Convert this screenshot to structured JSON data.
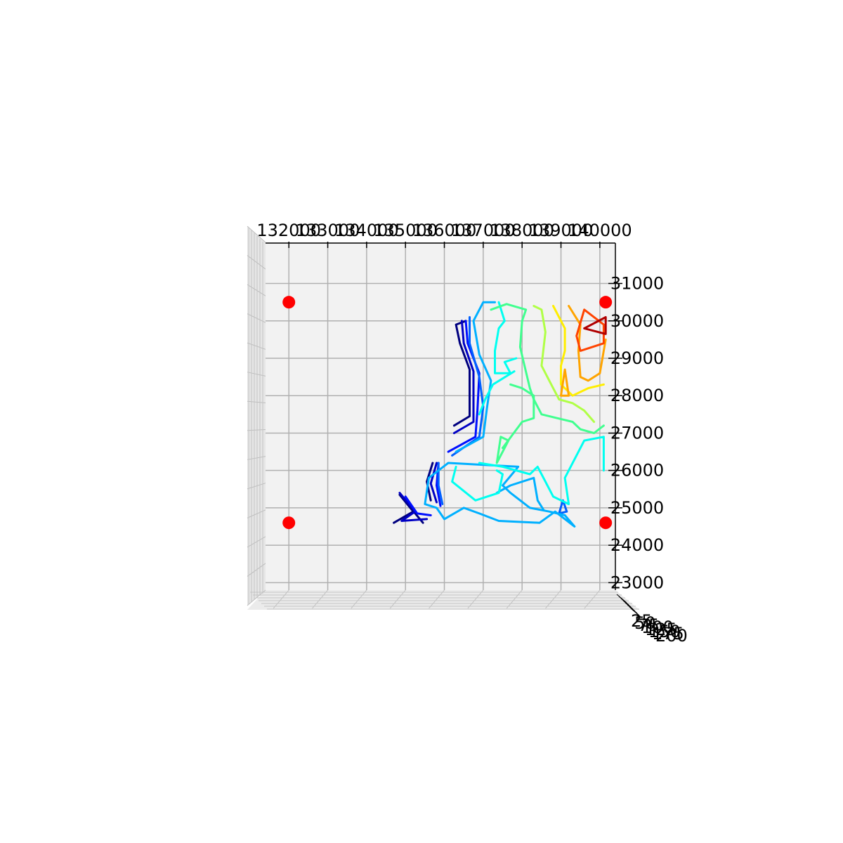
{
  "chart_data": {
    "type": "contour",
    "title": "",
    "xlabel": "",
    "ylabel": "",
    "grid": true,
    "xlim": [
      131400,
      140400
    ],
    "ylim": [
      22800,
      32100
    ],
    "x_ticks": [
      132000,
      133000,
      134000,
      135000,
      136000,
      137000,
      138000,
      139000,
      140000
    ],
    "y_ticks": [
      23000,
      24000,
      25000,
      26000,
      27000,
      28000,
      29000,
      30000,
      31000
    ],
    "x_tick_labels": [
      "132000",
      "133000",
      "134000",
      "135000",
      "136000",
      "137000",
      "138000",
      "139000",
      "140000"
    ],
    "y_tick_labels": [
      "23000",
      "24000",
      "25000",
      "26000",
      "27000",
      "28000",
      "29000",
      "30000",
      "31000"
    ],
    "z_tick_labels": [
      "25",
      "50",
      "75",
      "100",
      "125",
      "150",
      "175",
      "200"
    ],
    "colormap": "jet",
    "colors": {
      "pane": "#f2f2f2",
      "grid": "#b0b0b0",
      "marker": "#ff0000"
    },
    "markers": [
      {
        "x": 132000,
        "y": 30500
      },
      {
        "x": 140150,
        "y": 30500
      },
      {
        "x": 132000,
        "y": 24600
      },
      {
        "x": 140150,
        "y": 24600
      }
    ],
    "contours": [
      {
        "level": 0.0,
        "color": "#00007f",
        "paths": [
          [
            [
              134700,
              24600
            ],
            [
              135200,
              24900
            ],
            [
              134850,
              25350
            ],
            [
              135450,
              24600
            ]
          ],
          [
            [
              136250,
              27200
            ],
            [
              136650,
              27450
            ],
            [
              136650,
              28700
            ],
            [
              136400,
              29400
            ],
            [
              136300,
              29900
            ],
            [
              136550,
              30000
            ]
          ],
          [
            [
              135700,
              26200
            ],
            [
              135550,
              25700
            ],
            [
              135650,
              25200
            ]
          ]
        ]
      },
      {
        "level": 0.1,
        "color": "#0000c4",
        "paths": [
          [
            [
              134850,
              25400
            ],
            [
              135250,
              24900
            ],
            [
              134900,
              24650
            ],
            [
              135550,
              24700
            ]
          ],
          [
            [
              136250,
              27000
            ],
            [
              136750,
              27300
            ],
            [
              136750,
              28650
            ],
            [
              136500,
              29400
            ],
            [
              136450,
              30000
            ]
          ],
          [
            [
              135800,
              26200
            ],
            [
              135650,
              25650
            ],
            [
              135800,
              25150
            ]
          ]
        ]
      },
      {
        "level": 0.2,
        "color": "#0010ff",
        "paths": [
          [
            [
              135000,
              25300
            ],
            [
              135300,
              24850
            ],
            [
              135650,
              24800
            ]
          ],
          [
            [
              136100,
              26500
            ],
            [
              136800,
              26900
            ],
            [
              136850,
              27600
            ],
            [
              136900,
              28600
            ],
            [
              136600,
              29400
            ],
            [
              136550,
              30000
            ]
          ],
          [
            [
              135850,
              26200
            ],
            [
              135800,
              25600
            ],
            [
              135900,
              25050
            ]
          ]
        ]
      },
      {
        "level": 0.3,
        "color": "#0060ff",
        "paths": [
          [
            [
              136200,
              26400
            ],
            [
              136900,
              26900
            ],
            [
              137000,
              27700
            ],
            [
              136900,
              28500
            ],
            [
              136650,
              29400
            ],
            [
              136650,
              30100
            ]
          ],
          [
            [
              135850,
              26200
            ],
            [
              135850,
              25600
            ],
            [
              135950,
              25100
            ]
          ],
          [
            [
              139050,
              25200
            ],
            [
              138950,
              24850
            ],
            [
              139150,
              24900
            ],
            [
              139050,
              25200
            ]
          ]
        ]
      },
      {
        "level": 0.4,
        "color": "#00b0ff",
        "paths": [
          [
            [
              135500,
              25100
            ],
            [
              135600,
              25800
            ],
            [
              136100,
              26200
            ],
            [
              137900,
              26100
            ],
            [
              137500,
              25600
            ],
            [
              137700,
              25400
            ],
            [
              138200,
              25000
            ],
            [
              138700,
              24900
            ],
            [
              139100,
              24800
            ],
            [
              139350,
              24500
            ],
            [
              138850,
              24900
            ],
            [
              138450,
              24600
            ],
            [
              137400,
              24650
            ],
            [
              136900,
              24850
            ],
            [
              136500,
              25000
            ],
            [
              136000,
              24700
            ],
            [
              135800,
              25000
            ],
            [
              135500,
              25100
            ]
          ],
          [
            [
              136300,
              26500
            ],
            [
              137000,
              26900
            ],
            [
              137100,
              27700
            ],
            [
              137200,
              28400
            ],
            [
              136900,
              29100
            ],
            [
              136750,
              30000
            ],
            [
              137000,
              30500
            ],
            [
              137300,
              30500
            ]
          ],
          [
            [
              137350,
              25400
            ],
            [
              137700,
              25600
            ],
            [
              138300,
              25800
            ],
            [
              138400,
              25200
            ],
            [
              138550,
              24950
            ]
          ]
        ]
      },
      {
        "level": 0.5,
        "color": "#00fff0",
        "paths": [
          [
            [
              136900,
              26200
            ],
            [
              137500,
              26100
            ],
            [
              138200,
              25900
            ],
            [
              138400,
              26100
            ],
            [
              138600,
              25700
            ],
            [
              138800,
              25300
            ],
            [
              139200,
              25100
            ],
            [
              139100,
              25800
            ],
            [
              139500,
              26600
            ],
            [
              139600,
              26800
            ],
            [
              140100,
              26900
            ],
            [
              140100,
              26000
            ]
          ],
          [
            [
              137400,
              30500
            ],
            [
              137550,
              30000
            ],
            [
              137400,
              29800
            ],
            [
              137300,
              29200
            ],
            [
              137300,
              28600
            ],
            [
              137700,
              28600
            ],
            [
              137550,
              28900
            ],
            [
              137850,
              29000
            ]
          ],
          [
            [
              136300,
              26100
            ],
            [
              136200,
              25700
            ],
            [
              136800,
              25200
            ],
            [
              137400,
              25400
            ],
            [
              137500,
              25900
            ],
            [
              137350,
              26000
            ]
          ],
          [
            [
              137800,
              28650
            ],
            [
              137250,
              28300
            ],
            [
              137050,
              27900
            ],
            [
              136900,
              27500
            ]
          ]
        ]
      },
      {
        "level": 0.6,
        "color": "#40ff8f",
        "paths": [
          [
            [
              137200,
              30300
            ],
            [
              137600,
              30450
            ],
            [
              138100,
              30300
            ],
            [
              138000,
              30000
            ],
            [
              137950,
              29300
            ],
            [
              138050,
              28850
            ],
            [
              138200,
              28200
            ],
            [
              138300,
              27900
            ],
            [
              138500,
              27500
            ],
            [
              138900,
              27400
            ],
            [
              139300,
              27300
            ],
            [
              139500,
              27100
            ],
            [
              139850,
              27000
            ],
            [
              140100,
              27200
            ]
          ],
          [
            [
              137500,
              26600
            ],
            [
              138000,
              27300
            ],
            [
              138300,
              27400
            ],
            [
              138300,
              28000
            ],
            [
              138000,
              28200
            ],
            [
              137700,
              28300
            ]
          ],
          [
            [
              137350,
              26200
            ],
            [
              137650,
              26800
            ],
            [
              137450,
              26900
            ],
            [
              137350,
              26200
            ]
          ]
        ]
      },
      {
        "level": 0.7,
        "color": "#b0ff46",
        "paths": [
          [
            [
              138300,
              30400
            ],
            [
              138500,
              30300
            ],
            [
              138600,
              29700
            ],
            [
              138500,
              28800
            ],
            [
              138750,
              28300
            ],
            [
              138950,
              27900
            ],
            [
              139300,
              27800
            ],
            [
              139600,
              27600
            ],
            [
              139850,
              27300
            ]
          ]
        ]
      },
      {
        "level": 0.8,
        "color": "#ffee00",
        "paths": [
          [
            [
              138800,
              30400
            ],
            [
              139100,
              29800
            ],
            [
              139100,
              29200
            ],
            [
              139000,
              28800
            ],
            [
              139000,
              28300
            ],
            [
              139300,
              28000
            ],
            [
              139700,
              28200
            ],
            [
              140100,
              28300
            ]
          ]
        ]
      },
      {
        "level": 0.9,
        "color": "#ffa400",
        "paths": [
          [
            [
              139200,
              30400
            ],
            [
              139500,
              29900
            ],
            [
              139450,
              29200
            ],
            [
              139500,
              28500
            ],
            [
              139700,
              28400
            ],
            [
              140000,
              28600
            ],
            [
              140100,
              29200
            ],
            [
              140150,
              29500
            ]
          ],
          [
            [
              139000,
              28000
            ],
            [
              139100,
              28700
            ],
            [
              139200,
              28000
            ],
            [
              139000,
              28000
            ]
          ]
        ]
      },
      {
        "level": 1.0,
        "color": "#ff4400",
        "paths": [
          [
            [
              139400,
              29600
            ],
            [
              139500,
              29200
            ],
            [
              140100,
              29400
            ],
            [
              140100,
              29900
            ],
            [
              139600,
              30300
            ],
            [
              139400,
              29600
            ]
          ]
        ]
      },
      {
        "level": 1.1,
        "color": "#b00000",
        "paths": [
          [
            [
              139600,
              29800
            ],
            [
              140150,
              30100
            ],
            [
              140150,
              29650
            ],
            [
              139600,
              29800
            ]
          ]
        ]
      }
    ]
  }
}
